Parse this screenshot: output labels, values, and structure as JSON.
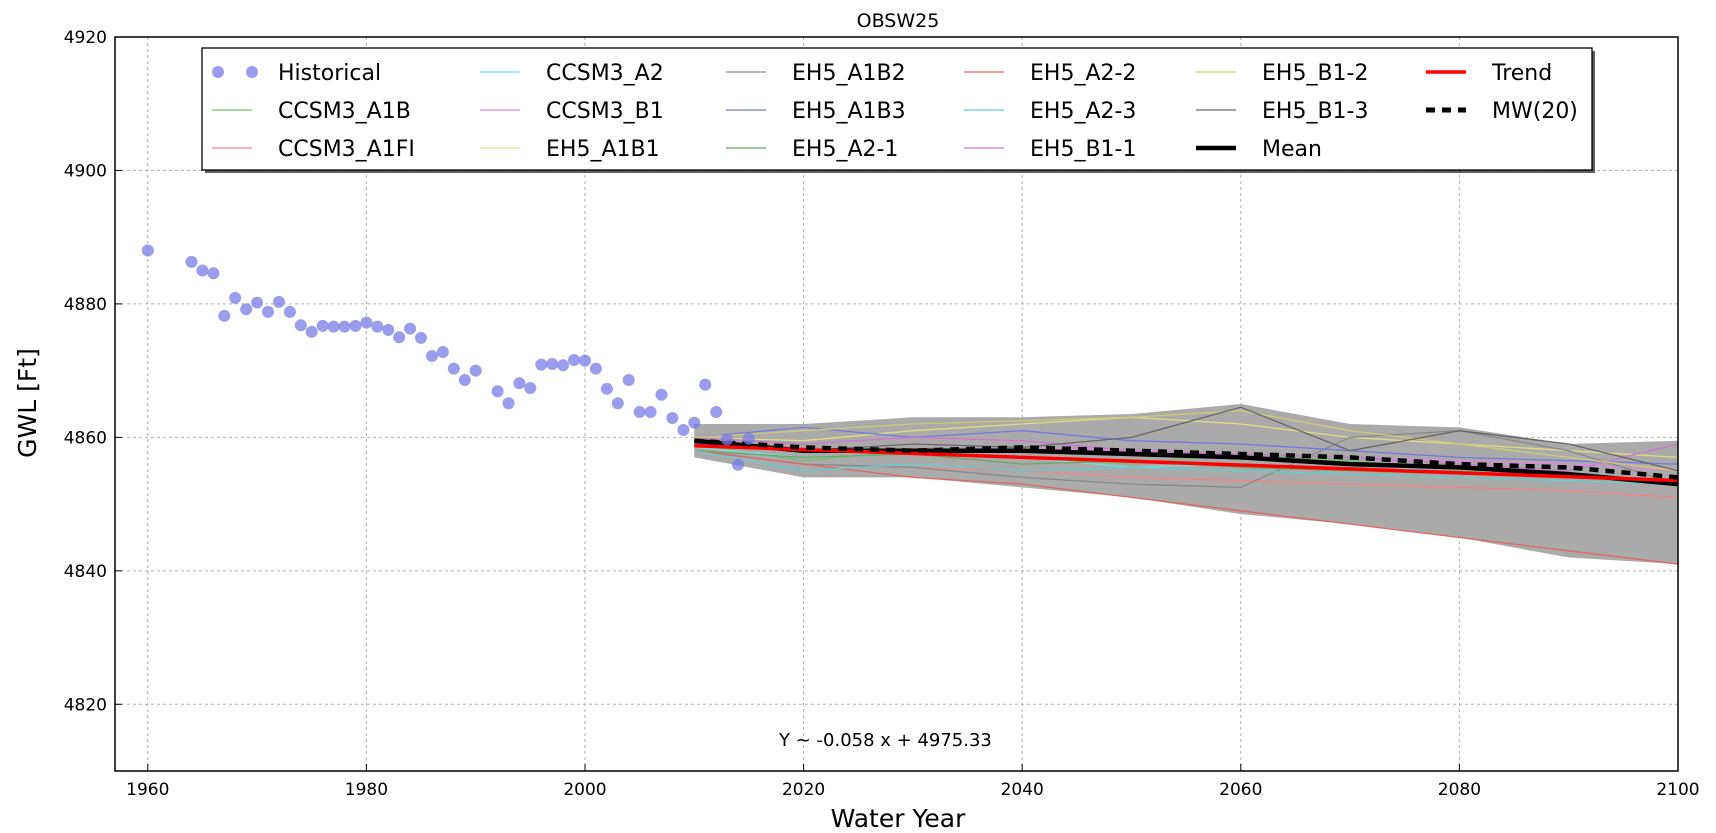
{
  "chart_data": {
    "type": "line",
    "title": "OBSW25",
    "xlabel": "Water Year",
    "ylabel": "GWL [Ft]",
    "xlim": [
      1957,
      2100
    ],
    "ylim": [
      4810,
      4920
    ],
    "xticks": [
      1960,
      1980,
      2000,
      2020,
      2040,
      2060,
      2080,
      2100
    ],
    "yticks": [
      4820,
      4840,
      4860,
      4880,
      4900,
      4920
    ],
    "grid": true,
    "legend_position": "top",
    "annotation": "Y ~ -0.058 x + 4975.33",
    "historical": {
      "name": "Historical",
      "color": "#7b7be6",
      "x": [
        1960,
        1964,
        1965,
        1966,
        1967,
        1968,
        1969,
        1970,
        1971,
        1972,
        1973,
        1974,
        1975,
        1976,
        1977,
        1978,
        1979,
        1980,
        1981,
        1982,
        1983,
        1984,
        1985,
        1986,
        1987,
        1988,
        1989,
        1990,
        1992,
        1993,
        1994,
        1995,
        1996,
        1997,
        1998,
        1999,
        2000,
        2001,
        2002,
        2003,
        2004,
        2005,
        2006,
        2007,
        2008,
        2009,
        2010,
        2011,
        2012,
        2013,
        2014,
        2015
      ],
      "y": [
        4888,
        4886.3,
        4885,
        4884.6,
        4878.2,
        4880.9,
        4879.2,
        4880.2,
        4878.8,
        4880.3,
        4878.8,
        4876.8,
        4875.8,
        4876.7,
        4876.6,
        4876.6,
        4876.7,
        4877.2,
        4876.6,
        4876.1,
        4875,
        4876.3,
        4874.9,
        4872.2,
        4872.8,
        4870.3,
        4868.6,
        4870,
        4866.9,
        4865.1,
        4868.1,
        4867.4,
        4870.9,
        4871,
        4870.8,
        4871.6,
        4871.5,
        4870.3,
        4867.3,
        4865.1,
        4868.6,
        4863.8,
        4863.8,
        4866.4,
        4862.9,
        4861.1,
        4862.2,
        4867.9,
        4863.8,
        4859.7,
        4855.9,
        4859.8
      ]
    },
    "projections": {
      "x": [
        2010,
        2020,
        2030,
        2040,
        2050,
        2060,
        2070,
        2080,
        2090,
        2100
      ],
      "series": [
        {
          "name": "CCSM3_A1B",
          "color": "#77bb77",
          "values": [
            4859,
            4856.5,
            4858,
            4857,
            4856,
            4857.5,
            4856.5,
            4855,
            4854,
            4853
          ]
        },
        {
          "name": "CCSM3_A1FI",
          "color": "#ee8888",
          "values": [
            4858,
            4856,
            4855.5,
            4855,
            4854,
            4853.5,
            4853,
            4852.5,
            4852,
            4851
          ]
        },
        {
          "name": "CCSM3_A2",
          "color": "#77dddd",
          "values": [
            4858.5,
            4857,
            4857.5,
            4857,
            4855.5,
            4856,
            4855,
            4855.5,
            4854,
            4853.5
          ]
        },
        {
          "name": "CCSM3_B1",
          "color": "#dd88dd",
          "values": [
            4859,
            4858,
            4859,
            4858.5,
            4858,
            4857.5,
            4857,
            4856.5,
            4856,
            4855
          ]
        },
        {
          "name": "EH5_A1B1",
          "color": "#dddd88",
          "values": [
            4860,
            4859.5,
            4861,
            4862,
            4863,
            4862,
            4860,
            4859,
            4858,
            4857
          ]
        },
        {
          "name": "EH5_A1B2",
          "color": "#888888",
          "values": [
            4858,
            4856,
            4855.5,
            4854,
            4853,
            4852.5,
            4860,
            4861,
            4858,
            4853
          ]
        },
        {
          "name": "EH5_A1B3",
          "color": "#7777dd",
          "values": [
            4860,
            4861.5,
            4860,
            4861,
            4859.5,
            4859,
            4858,
            4857,
            4856.5,
            4856
          ]
        },
        {
          "name": "EH5_A2-1",
          "color": "#66aa66",
          "values": [
            4858,
            4857,
            4857.5,
            4856,
            4856.5,
            4855.5,
            4855,
            4854.5,
            4854,
            4853.5
          ]
        },
        {
          "name": "EH5_A2-2",
          "color": "#dd6666",
          "values": [
            4858,
            4856,
            4854,
            4853,
            4851,
            4849,
            4847,
            4845,
            4843,
            4841
          ]
        },
        {
          "name": "EH5_A2-3",
          "color": "#66cccc",
          "values": [
            4858,
            4855,
            4856,
            4855,
            4855.5,
            4855,
            4854.5,
            4854,
            4853.5,
            4853
          ]
        },
        {
          "name": "EH5_B1-1",
          "color": "#cc77cc",
          "values": [
            4860,
            4859,
            4860,
            4859.5,
            4858,
            4857.5,
            4857,
            4856,
            4855,
            4859
          ]
        },
        {
          "name": "EH5_B1-2",
          "color": "#cccc77",
          "values": [
            4860,
            4861,
            4862,
            4862.5,
            4863,
            4864,
            4861,
            4859,
            4857,
            4855
          ]
        },
        {
          "name": "EH5_B1-3",
          "color": "#666666",
          "values": [
            4859,
            4858,
            4859,
            4858.5,
            4860,
            4864.5,
            4858,
            4861,
            4859,
            4855
          ]
        }
      ],
      "envelope_upper": [
        4862,
        4862,
        4863,
        4863,
        4863.5,
        4865,
        4862,
        4861.5,
        4859,
        4859.5
      ],
      "envelope_lower": [
        4857,
        4854,
        4854,
        4852.5,
        4851,
        4848.5,
        4847,
        4845,
        4842,
        4841
      ]
    },
    "trend": {
      "name": "Trend",
      "color": "#ff0000",
      "slope": -0.058,
      "intercept": 4975.33,
      "x_range": [
        2010,
        2100
      ]
    },
    "moving_window": {
      "name": "MW(20)",
      "color": "#000000",
      "values": [
        4859.5,
        4858.5,
        4858,
        4858.5,
        4858,
        4857.5,
        4857,
        4856,
        4855.5,
        4854
      ]
    },
    "mean": {
      "name": "Mean",
      "color": "#000000",
      "values": [
        4859.5,
        4858,
        4858,
        4858,
        4857.5,
        4857,
        4856,
        4855.5,
        4854.5,
        4853
      ]
    }
  }
}
